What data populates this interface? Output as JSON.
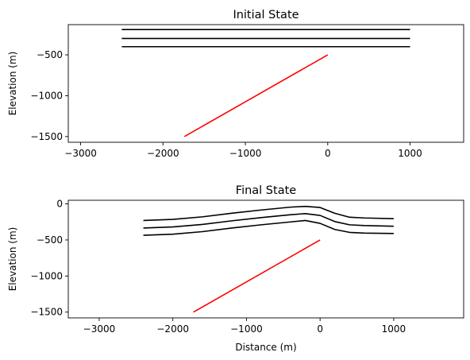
{
  "chart_data": [
    {
      "type": "line",
      "title": "Initial State",
      "xlabel": "",
      "ylabel": "Elevation (m)",
      "xlim": [
        -3150,
        1650
      ],
      "ylim": [
        -1570,
        -130
      ],
      "xticks": [
        -3000,
        -2000,
        -1000,
        0,
        1000
      ],
      "xtick_labels": [
        "−3000",
        "−2000",
        "−1000",
        "0",
        "1000"
      ],
      "yticks": [
        -500,
        -1000,
        -1500
      ],
      "ytick_labels": [
        "−500",
        "−1000",
        "−1500"
      ],
      "grid": false,
      "series": [
        {
          "color": "#000000",
          "x": [
            -2500,
            1000
          ],
          "y": [
            -190,
            -190
          ]
        },
        {
          "color": "#000000",
          "x": [
            -2500,
            1000
          ],
          "y": [
            -300,
            -300
          ]
        },
        {
          "color": "#000000",
          "x": [
            -2500,
            1000
          ],
          "y": [
            -400,
            -400
          ]
        },
        {
          "color": "#ff0000",
          "x": [
            -1740,
            0
          ],
          "y": [
            -1500,
            -500
          ]
        }
      ]
    },
    {
      "type": "line",
      "title": "Final State",
      "xlabel": "Distance (m)",
      "ylabel": "Elevation (m)",
      "xlim": [
        -3420,
        1950
      ],
      "ylim": [
        -1580,
        50
      ],
      "xticks": [
        -3000,
        -2000,
        -1000,
        0,
        1000
      ],
      "xtick_labels": [
        "−3000",
        "−2000",
        "−1000",
        "0",
        "1000"
      ],
      "yticks": [
        0,
        -500,
        -1000,
        -1500
      ],
      "ytick_labels": [
        "0",
        "−500",
        "−1000",
        "−1500"
      ],
      "grid": false,
      "series": [
        {
          "color": "#000000",
          "x": [
            -2400,
            -2000,
            -1600,
            -1200,
            -800,
            -400,
            -200,
            0,
            200,
            400,
            600,
            1000
          ],
          "y": [
            -230,
            -215,
            -180,
            -130,
            -85,
            -45,
            -35,
            -50,
            -130,
            -185,
            -195,
            -205
          ]
        },
        {
          "color": "#000000",
          "x": [
            -2400,
            -2000,
            -1600,
            -1200,
            -800,
            -400,
            -200,
            0,
            200,
            400,
            600,
            1000
          ],
          "y": [
            -335,
            -320,
            -285,
            -235,
            -190,
            -150,
            -135,
            -160,
            -245,
            -290,
            -300,
            -310
          ]
        },
        {
          "color": "#000000",
          "x": [
            -2400,
            -2000,
            -1600,
            -1200,
            -800,
            -400,
            -200,
            0,
            200,
            400,
            600,
            1000
          ],
          "y": [
            -435,
            -420,
            -385,
            -335,
            -290,
            -250,
            -230,
            -270,
            -355,
            -395,
            -405,
            -410
          ]
        },
        {
          "color": "#ff0000",
          "x": [
            -1720,
            0
          ],
          "y": [
            -1500,
            -500
          ]
        }
      ]
    }
  ]
}
